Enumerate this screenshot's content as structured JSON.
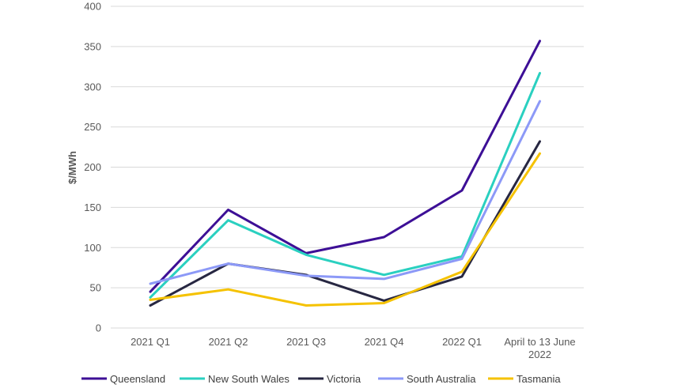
{
  "chart_data": {
    "type": "line",
    "categories": [
      "2021 Q1",
      "2021 Q2",
      "2021 Q3",
      "2021 Q4",
      "2022 Q1",
      "April to 13 June 2022"
    ],
    "category_lines": [
      [
        "2021 Q1"
      ],
      [
        "2021 Q2"
      ],
      [
        "2021 Q3"
      ],
      [
        "2021 Q4"
      ],
      [
        "2022 Q1"
      ],
      [
        "April to 13 June",
        "2022"
      ]
    ],
    "ylabel": "$/MWh",
    "xlabel": "",
    "ylim": [
      0,
      400
    ],
    "yticks": [
      0,
      50,
      100,
      150,
      200,
      250,
      300,
      350,
      400
    ],
    "grid": "horizontal",
    "legend_position": "bottom",
    "series": [
      {
        "name": "Queensland",
        "color": "#3d0f96",
        "values": [
          45,
          147,
          93,
          113,
          171,
          357
        ]
      },
      {
        "name": "New South Wales",
        "color": "#2ad0c0",
        "values": [
          38,
          134,
          91,
          66,
          89,
          317
        ]
      },
      {
        "name": "Victoria",
        "color": "#272742",
        "values": [
          28,
          80,
          66,
          34,
          64,
          232
        ]
      },
      {
        "name": "South Australia",
        "color": "#8c99f7",
        "values": [
          55,
          80,
          65,
          61,
          86,
          282
        ]
      },
      {
        "name": "Tasmania",
        "color": "#f5c200",
        "values": [
          35,
          48,
          28,
          31,
          70,
          217
        ]
      }
    ]
  }
}
